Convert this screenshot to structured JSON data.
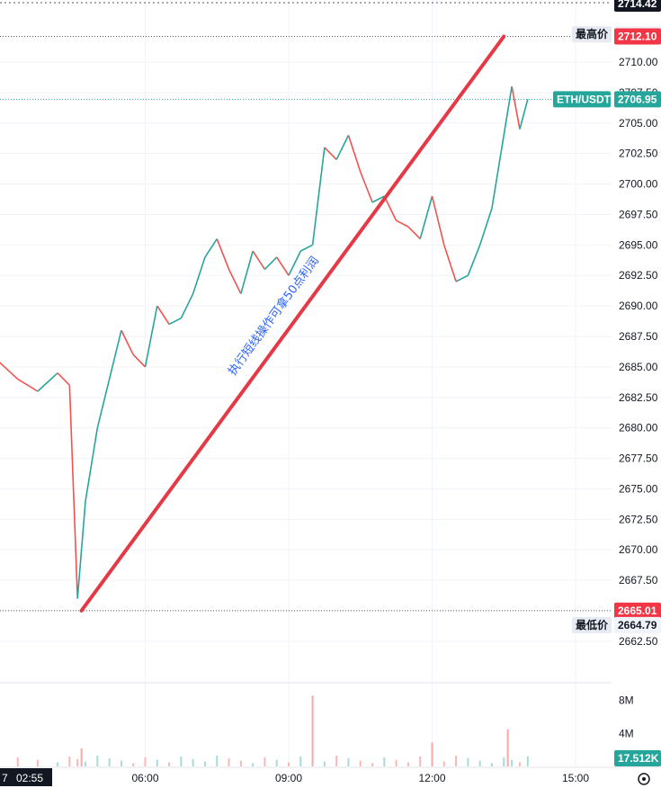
{
  "chart_data": {
    "type": "line",
    "symbol": "ETH/USDT",
    "last_price": "2706.95",
    "high_label": "最高价",
    "high_price": "2712.13",
    "low_label": "最低价",
    "low_price": "2664.79",
    "top_marker": "2714.42",
    "line_start_price": "2665.01",
    "line_end_price": "2712.10",
    "volume_value": "17.512K",
    "current_time_label": "02:55",
    "current_time_prefix": "7",
    "annotation": "执行短线操作可拿50点利润",
    "ylim": [
      2660.5,
      2714.5
    ],
    "price_ticks": [
      "2710.00",
      "2707.50",
      "2705.00",
      "2702.50",
      "2700.00",
      "2697.50",
      "2695.00",
      "2692.50",
      "2690.00",
      "2687.50",
      "2685.00",
      "2682.50",
      "2680.00",
      "2677.50",
      "2675.00",
      "2672.50",
      "2670.00",
      "2667.50",
      "2662.50"
    ],
    "volume_ticks": [
      "8M",
      "4M"
    ],
    "time_ticks": [
      "06:00",
      "09:00",
      "12:00",
      "15:00"
    ],
    "trend_line": {
      "from": {
        "time": "04:40",
        "price": 2665.01
      },
      "to": {
        "time": "13:30",
        "price": 2712.1
      }
    },
    "series": [
      {
        "x": [
          "02:55",
          "03:20",
          "03:45",
          "04:10",
          "04:25",
          "04:35",
          "04:45",
          "05:00",
          "05:15",
          "05:30",
          "05:45",
          "06:00",
          "06:15",
          "06:30",
          "06:45",
          "07:00",
          "07:15",
          "07:30",
          "07:45",
          "08:00",
          "08:15",
          "08:30",
          "08:45",
          "09:00",
          "09:15",
          "09:30",
          "09:45",
          "10:00",
          "10:15",
          "10:30",
          "10:45",
          "11:00",
          "11:15",
          "11:30",
          "11:45",
          "12:00",
          "12:15",
          "12:30",
          "12:45",
          "13:00",
          "13:15",
          "13:30",
          "13:40",
          "13:50",
          "14:00"
        ],
        "values": [
          2685.5,
          2684.0,
          2683.0,
          2684.5,
          2683.5,
          2666.0,
          2674.0,
          2680.0,
          2684.0,
          2688.0,
          2686.0,
          2685.0,
          2690.0,
          2688.5,
          2689.0,
          2691.0,
          2694.0,
          2695.5,
          2693.0,
          2691.0,
          2694.5,
          2693.0,
          2694.0,
          2692.5,
          2694.5,
          2695.0,
          2703.0,
          2702.0,
          2704.0,
          2701.0,
          2698.5,
          2699.0,
          2697.0,
          2696.5,
          2695.5,
          2699.0,
          2695.0,
          2692.0,
          2692.5,
          2695.0,
          2698.0,
          2704.0,
          2708.0,
          2704.5,
          2706.95
        ]
      }
    ],
    "volume_spikes": [
      {
        "time": "04:40",
        "value": 2.2
      },
      {
        "time": "09:30",
        "value": 8.6
      },
      {
        "time": "12:00",
        "value": 2.9
      },
      {
        "time": "13:35",
        "value": 4.5
      }
    ]
  },
  "colors": {
    "up": "#26a69a",
    "down": "#ef5350",
    "trend": "#e53945",
    "annotation": "#2962ff",
    "grid": "#f0f3fa"
  }
}
